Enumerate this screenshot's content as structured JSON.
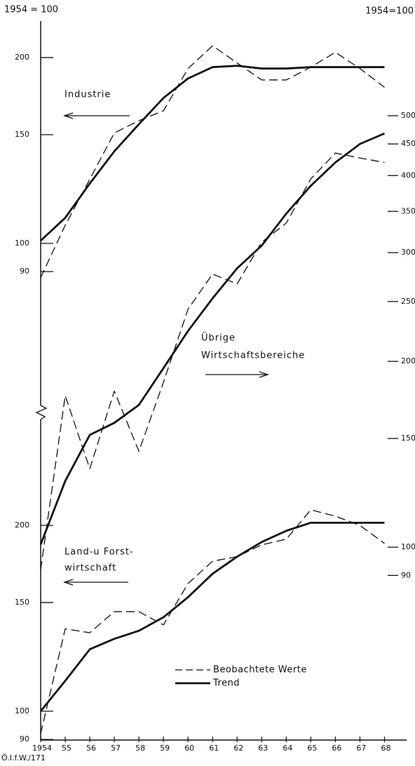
{
  "chart_data": {
    "type": "line",
    "log": true,
    "color": "#111111",
    "ylabel_left": "1954 = 100",
    "ylabel_right": "1954=100",
    "source": "Ö.I.f.W./171",
    "x": [
      1954,
      1955,
      1956,
      1957,
      1958,
      1959,
      1960,
      1961,
      1962,
      1963,
      1964,
      1965,
      1966,
      1967,
      1968
    ],
    "xlim": [
      1954,
      1968.9
    ],
    "xticks": [
      1954,
      {
        "value": 1955,
        "label": "55"
      },
      {
        "value": 1956,
        "label": "56"
      },
      {
        "value": 1957,
        "label": "57"
      },
      {
        "value": 1958,
        "label": "58"
      },
      {
        "value": 1959,
        "label": "59"
      },
      {
        "value": 1960,
        "label": "60"
      },
      {
        "value": 1961,
        "label": "61"
      },
      {
        "value": 1962,
        "label": "62"
      },
      {
        "value": 1963,
        "label": "63"
      },
      {
        "value": 1964,
        "label": "64"
      },
      {
        "value": 1965,
        "label": "65"
      },
      {
        "value": 1966,
        "label": "66"
      },
      {
        "value": 1967,
        "label": "67"
      },
      {
        "value": 1968,
        "label": "68"
      }
    ],
    "legend": [
      {
        "name": "Beobachtete Werte",
        "style": "dashed"
      },
      {
        "name": "Trend",
        "style": "solid"
      }
    ],
    "panels": [
      {
        "label": [
          "Industrie"
        ],
        "axis": "y",
        "ylim": [
          15.68,
          229.2
        ],
        "yticks": [
          90,
          100,
          150,
          200
        ],
        "series": [
          {
            "style": "dashed",
            "values": [
              88,
              107,
              127,
              151,
              158,
              164,
              192,
              209,
              196,
              184,
              184,
              193,
              204,
              192,
              179
            ]
          },
          {
            "style": "solid",
            "values": [
              101,
              110,
              125,
              141,
              156,
              172,
              185,
              193,
              194,
              192,
              192,
              193,
              193,
              193,
              193
            ]
          }
        ]
      },
      {
        "label": [
          "Übrige",
          "Wirtschaftsbereiche"
        ],
        "axis": "y2",
        "ylim": [
          48.7,
          711.8
        ],
        "yticks": [
          90,
          100,
          150,
          200,
          250,
          300,
          350,
          400,
          450,
          500
        ],
        "series": [
          {
            "style": "dashed",
            "values": [
              92,
              176,
              134,
              179,
              143,
              185,
              243,
              277,
              267,
              312,
              335,
              395,
              435,
              427,
              420
            ]
          },
          {
            "style": "solid",
            "values": [
              101,
              128,
              152,
              159,
              170,
              195,
              224,
              253,
              283,
              308,
              347,
              385,
              420,
              450,
              468
            ]
          }
        ]
      },
      {
        "label": [
          "Land-u Forst-",
          "wirtschaft"
        ],
        "axis": "y",
        "ylim": [
          89.8,
          1313
        ],
        "yticks": [
          90,
          100,
          150,
          200
        ],
        "series": [
          {
            "style": "dashed",
            "values": [
              92,
              136,
              134,
              145,
              145,
              138,
              161,
              175,
              178,
              186,
              190,
              212,
              207,
              200,
              187
            ]
          },
          {
            "style": "solid",
            "values": [
              100,
              112,
              126,
              131,
              135,
              142,
              153,
              167,
              178,
              188,
              196,
              202,
              202,
              202,
              202
            ]
          }
        ]
      }
    ]
  }
}
